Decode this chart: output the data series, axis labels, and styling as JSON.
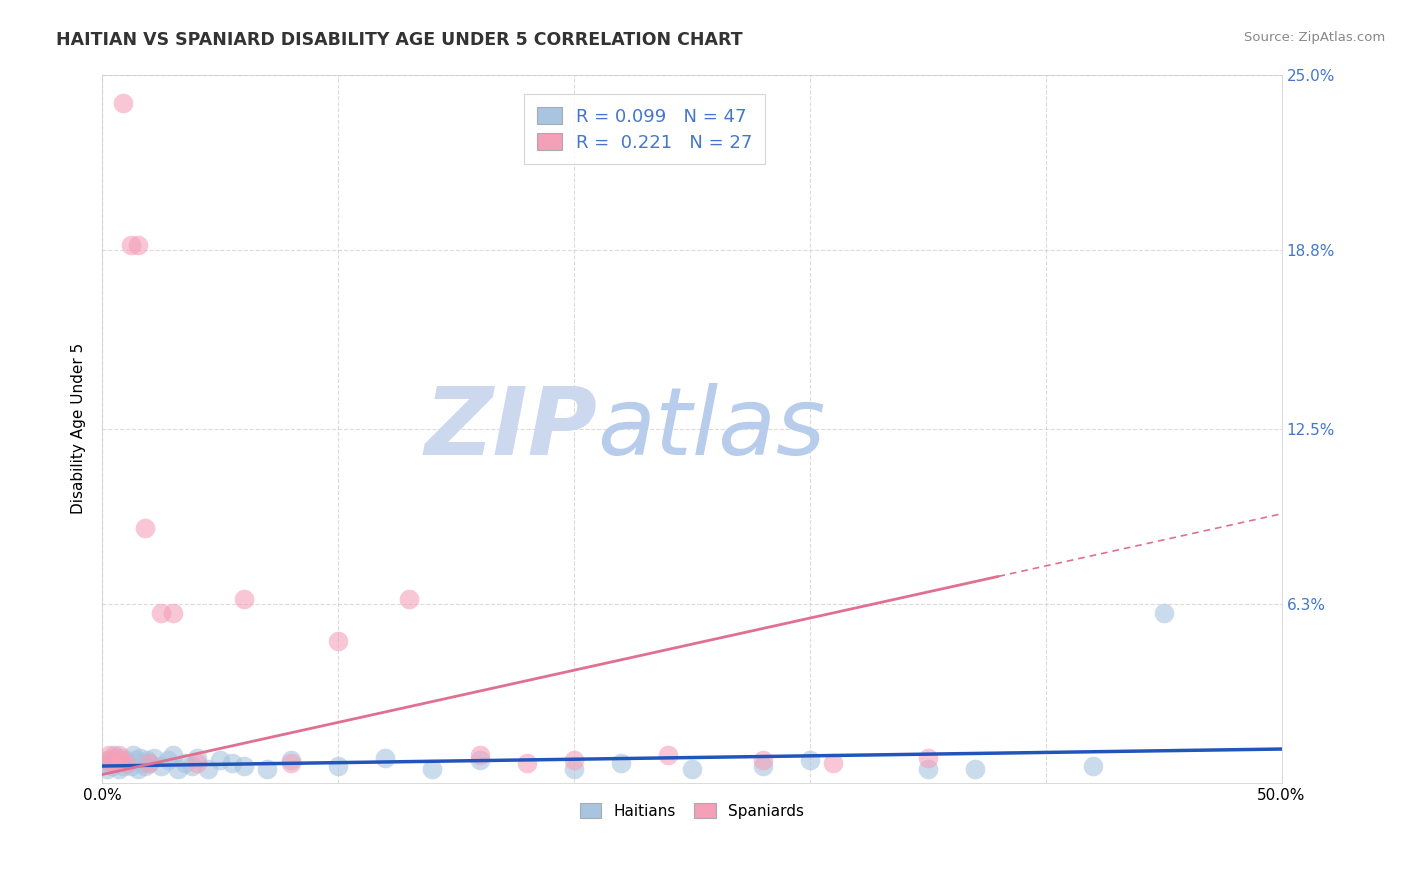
{
  "title": "HAITIAN VS SPANIARD DISABILITY AGE UNDER 5 CORRELATION CHART",
  "source": "Source: ZipAtlas.com",
  "ylabel": "Disability Age Under 5",
  "xlim": [
    -0.005,
    0.505
  ],
  "ylim": [
    -0.008,
    0.258
  ],
  "plot_xlim": [
    0.0,
    0.5
  ],
  "plot_ylim": [
    0.0,
    0.25
  ],
  "yticks": [
    0.0,
    0.063,
    0.125,
    0.188,
    0.25
  ],
  "ytick_labels": [
    "6.3%",
    "12.5%",
    "18.8%",
    "25.0%"
  ],
  "ytick_vals": [
    0.063,
    0.125,
    0.188,
    0.25
  ],
  "xticks": [
    0.0,
    0.1,
    0.2,
    0.3,
    0.4,
    0.5
  ],
  "xtick_labels": [
    "0.0%",
    "",
    "",
    "",
    "",
    "50.0%"
  ],
  "legend_line1": "R = 0.099   N = 47",
  "legend_line2": "R =  0.221   N = 27",
  "haitian_color": "#a8c4e0",
  "spaniard_color": "#f4a0b8",
  "haitian_line_color": "#2255bb",
  "spaniard_line_color": "#e07090",
  "watermark_zip_color": "#dde8f5",
  "watermark_atlas_color": "#c8d8f0",
  "background_color": "#ffffff",
  "grid_color": "#cccccc",
  "haitian_x": [
    0.001,
    0.002,
    0.003,
    0.004,
    0.005,
    0.006,
    0.007,
    0.008,
    0.009,
    0.01,
    0.011,
    0.012,
    0.013,
    0.014,
    0.015,
    0.016,
    0.017,
    0.018,
    0.019,
    0.02,
    0.022,
    0.025,
    0.028,
    0.03,
    0.032,
    0.035,
    0.038,
    0.04,
    0.045,
    0.05,
    0.055,
    0.06,
    0.07,
    0.08,
    0.1,
    0.12,
    0.14,
    0.16,
    0.2,
    0.22,
    0.25,
    0.28,
    0.3,
    0.35,
    0.37,
    0.42,
    0.45
  ],
  "haitian_y": [
    0.007,
    0.005,
    0.008,
    0.006,
    0.01,
    0.007,
    0.005,
    0.009,
    0.006,
    0.008,
    0.007,
    0.006,
    0.01,
    0.008,
    0.005,
    0.009,
    0.007,
    0.006,
    0.008,
    0.007,
    0.009,
    0.006,
    0.008,
    0.01,
    0.005,
    0.007,
    0.006,
    0.009,
    0.005,
    0.008,
    0.007,
    0.006,
    0.005,
    0.008,
    0.006,
    0.009,
    0.005,
    0.008,
    0.005,
    0.007,
    0.005,
    0.006,
    0.008,
    0.005,
    0.005,
    0.006,
    0.06
  ],
  "spaniard_x": [
    0.002,
    0.003,
    0.004,
    0.005,
    0.006,
    0.007,
    0.008,
    0.009,
    0.01,
    0.012,
    0.015,
    0.018,
    0.02,
    0.025,
    0.03,
    0.04,
    0.06,
    0.08,
    0.1,
    0.13,
    0.16,
    0.18,
    0.2,
    0.24,
    0.28,
    0.31,
    0.35
  ],
  "spaniard_y": [
    0.008,
    0.01,
    0.007,
    0.009,
    0.007,
    0.01,
    0.008,
    0.24,
    0.007,
    0.19,
    0.19,
    0.09,
    0.007,
    0.06,
    0.06,
    0.007,
    0.065,
    0.007,
    0.05,
    0.065,
    0.01,
    0.007,
    0.008,
    0.01,
    0.008,
    0.007,
    0.009
  ],
  "haitian_trend_x": [
    0.0,
    0.5
  ],
  "haitian_trend_y": [
    0.006,
    0.012
  ],
  "spaniard_trend_x": [
    0.0,
    0.5
  ],
  "spaniard_trend_y": [
    0.003,
    0.095
  ]
}
